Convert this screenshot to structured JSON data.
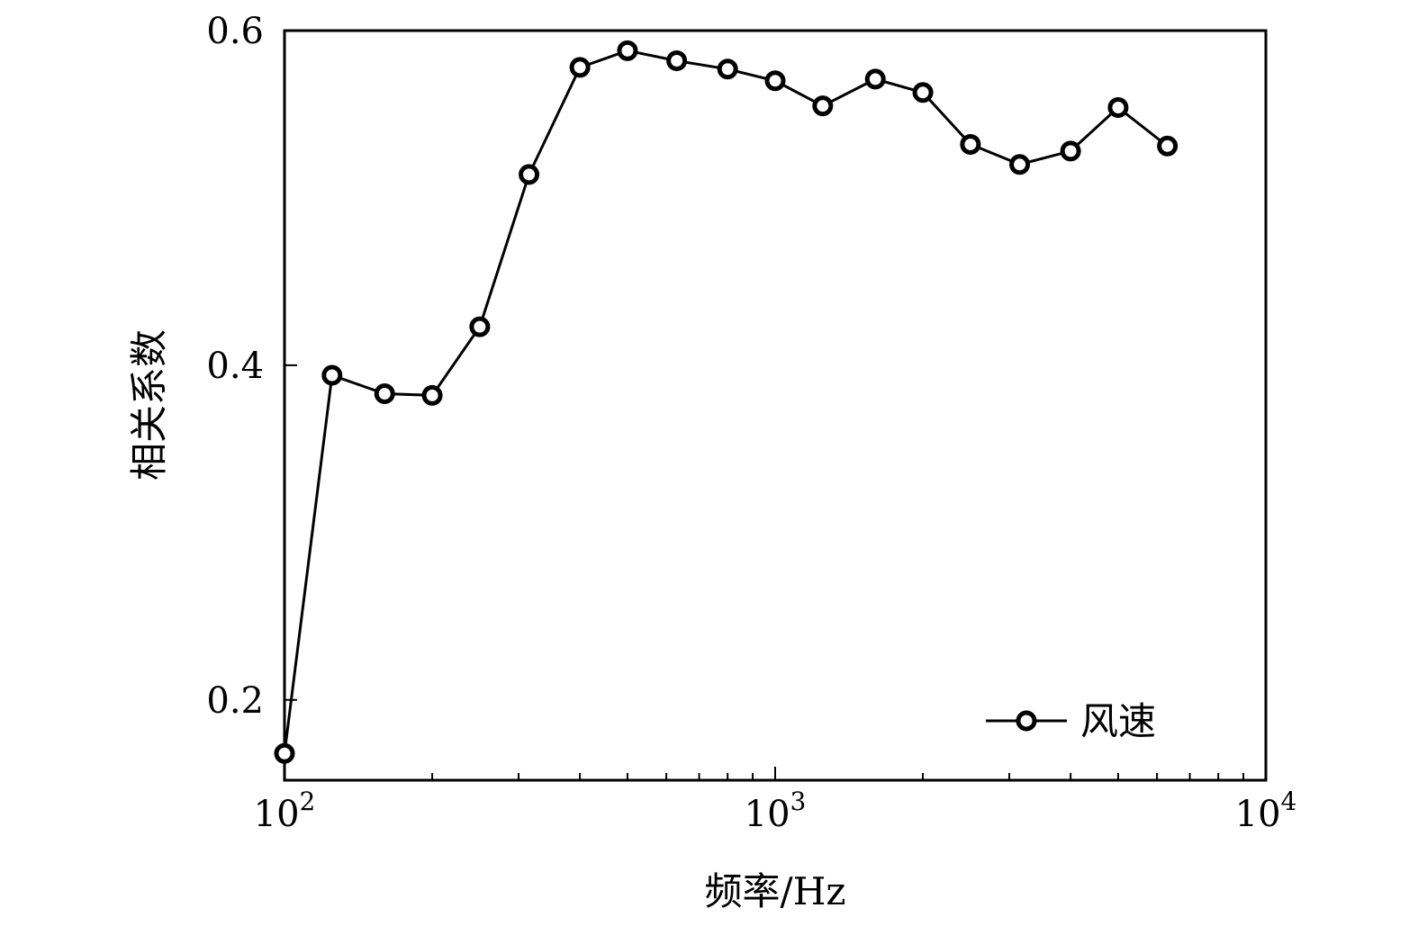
{
  "chart_data": {
    "type": "line",
    "title": "",
    "xlabel": "频率/Hz",
    "ylabel": "相关系数",
    "xscale": "log",
    "xlim": [
      100,
      10000
    ],
    "ylim": [
      0.152,
      0.6
    ],
    "x_ticks": [
      {
        "value": 100,
        "base": "10",
        "exp": "2"
      },
      {
        "value": 1000,
        "base": "10",
        "exp": "3"
      },
      {
        "value": 10000,
        "base": "10",
        "exp": "4"
      }
    ],
    "y_ticks": [
      {
        "value": 0.2,
        "label": "0.2"
      },
      {
        "value": 0.4,
        "label": "0.4"
      },
      {
        "value": 0.6,
        "label": "0.6"
      }
    ],
    "grid": false,
    "legend_position": "bottom-right",
    "marker": "open-circle",
    "line_color": "#000000",
    "series": [
      {
        "name": "风速",
        "x": [
          100,
          125,
          160,
          200,
          250,
          315,
          400,
          500,
          630,
          800,
          1000,
          1250,
          1600,
          2000,
          2500,
          3150,
          4000,
          5000,
          6300
        ],
        "y": [
          0.168,
          0.394,
          0.383,
          0.382,
          0.423,
          0.514,
          0.578,
          0.588,
          0.582,
          0.577,
          0.57,
          0.555,
          0.571,
          0.563,
          0.532,
          0.52,
          0.528,
          0.554,
          0.531
        ]
      }
    ]
  }
}
